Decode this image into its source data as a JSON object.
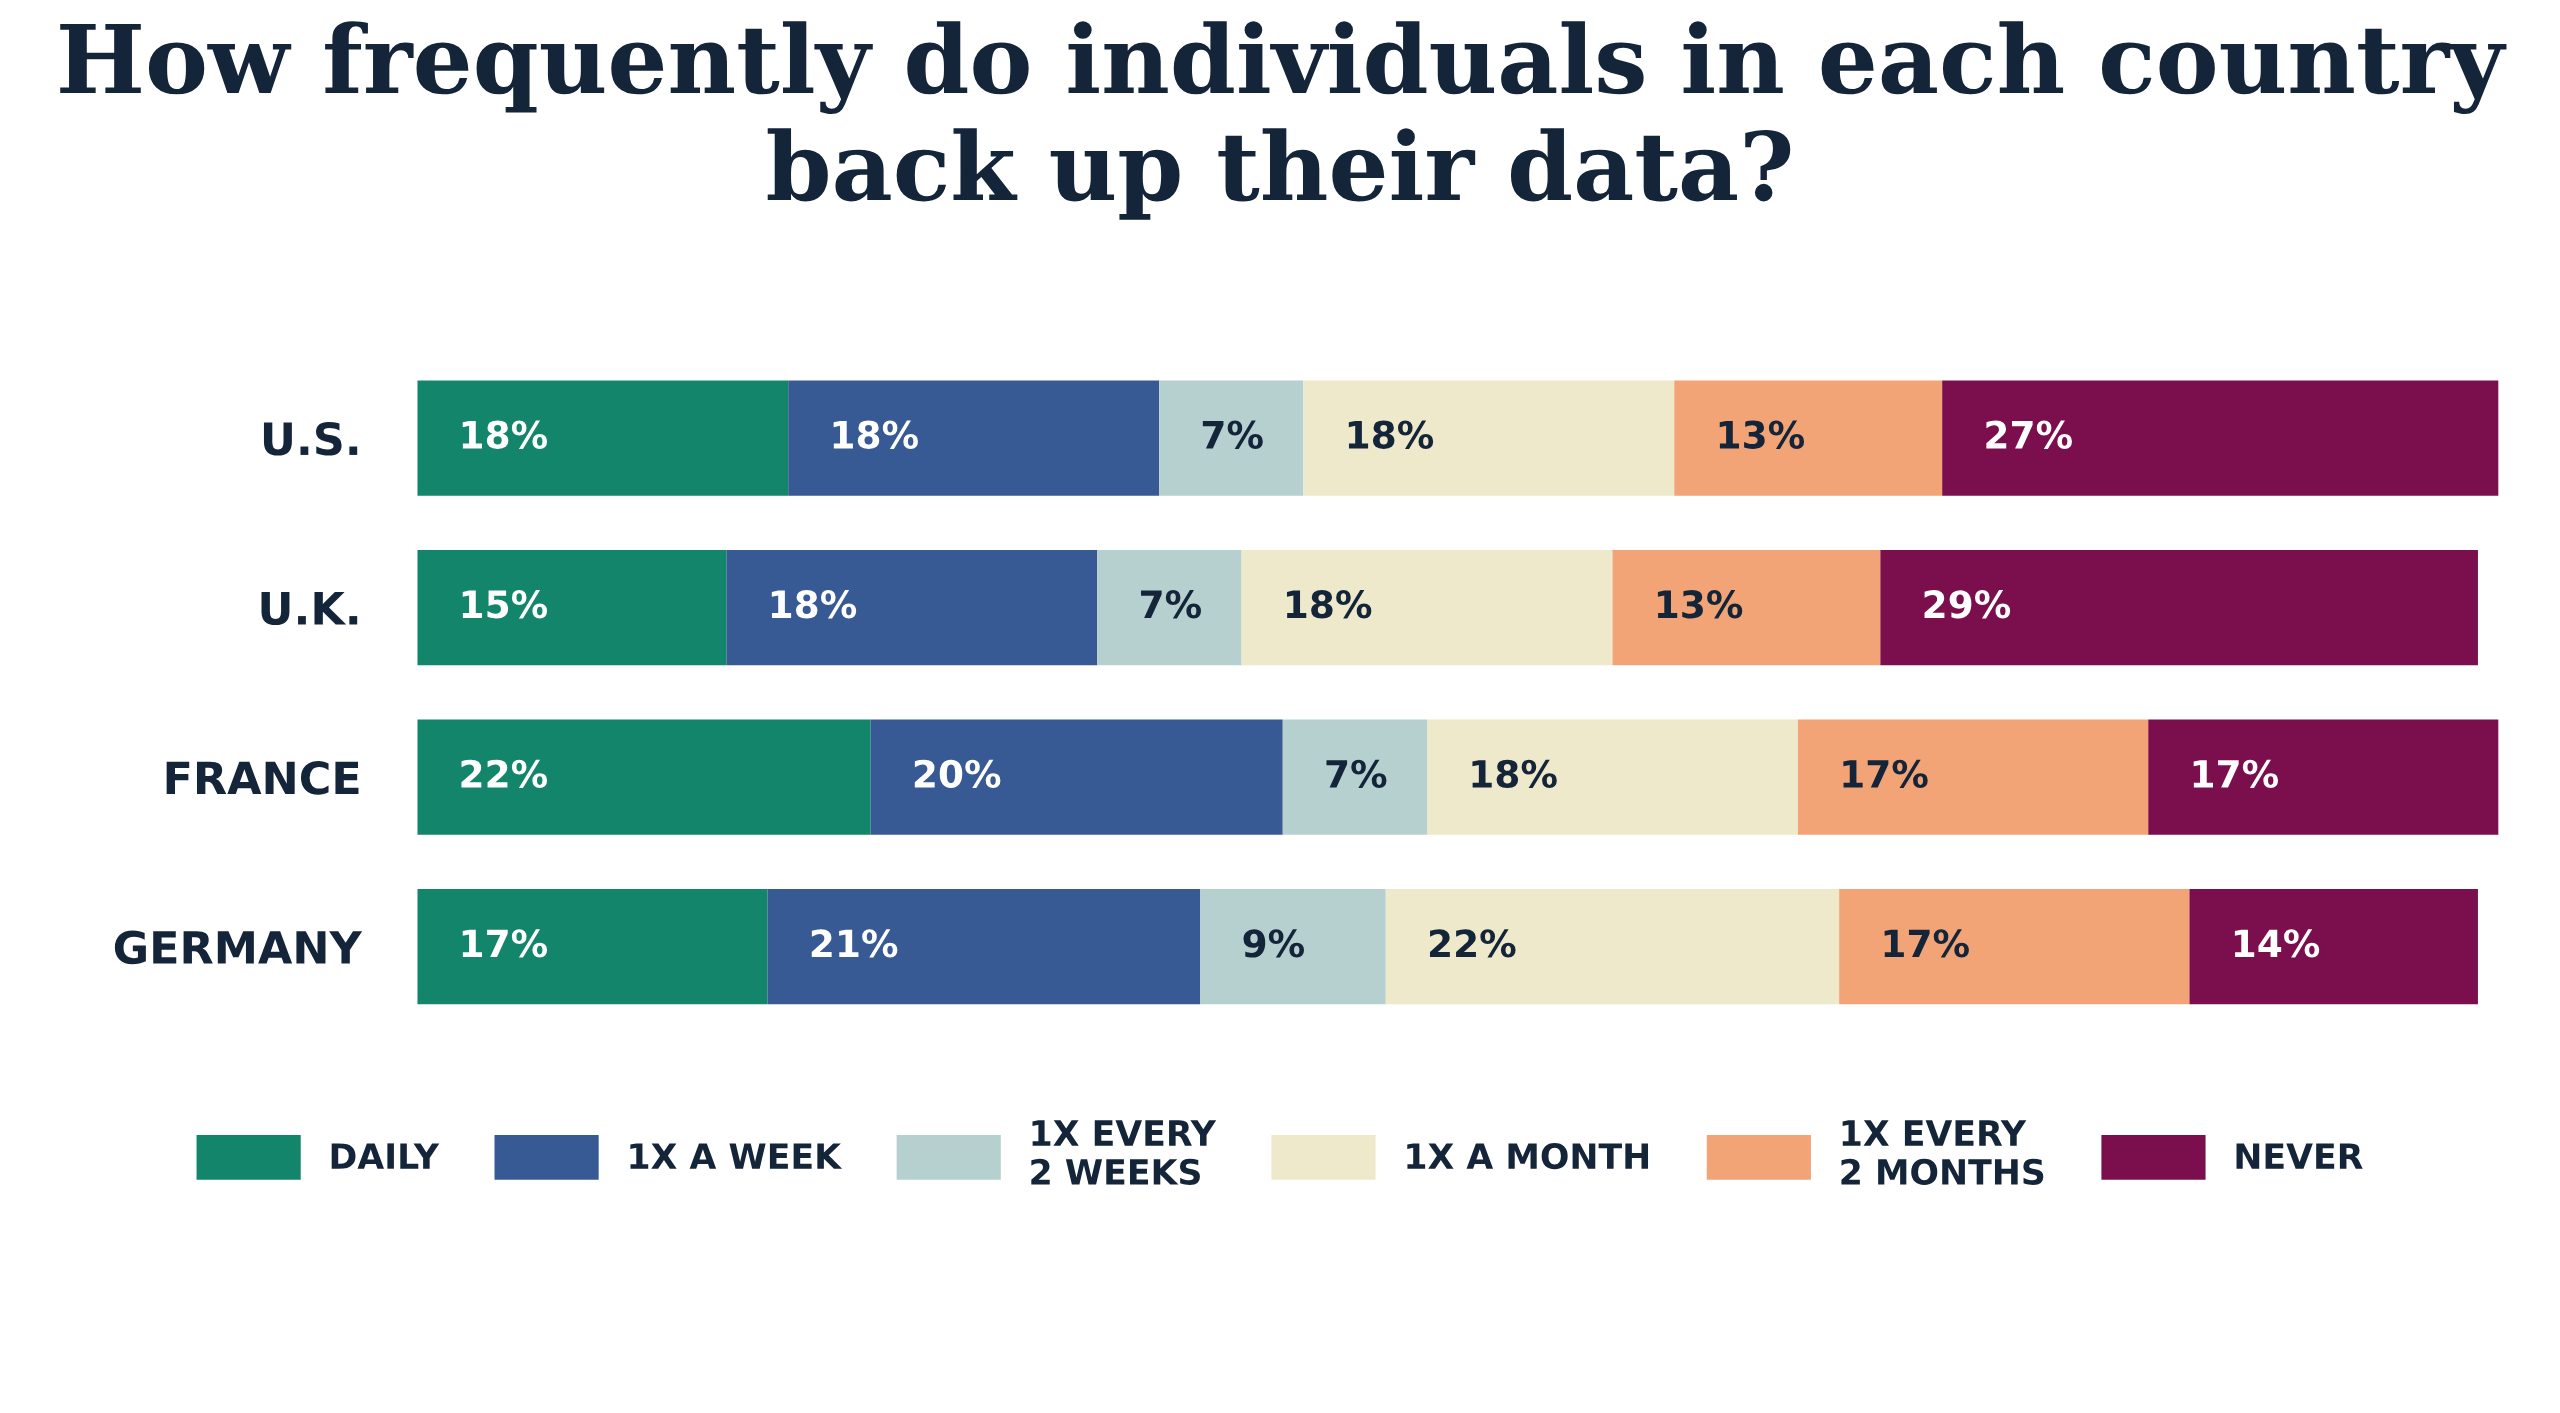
{
  "chart_data": {
    "type": "bar",
    "orientation": "horizontal",
    "stacked": true,
    "title": "How frequently do individuals in each country back up their data?",
    "categories": [
      "U.S.",
      "U.K.",
      "FRANCE",
      "GERMANY"
    ],
    "series": [
      {
        "name": "DAILY",
        "color": "#12856b",
        "values": [
          18,
          15,
          22,
          17
        ],
        "value_labels": [
          "18%",
          "15%",
          "22%",
          "17%"
        ]
      },
      {
        "name": "1X A WEEK",
        "color": "#385a94",
        "values": [
          18,
          18,
          20,
          21
        ],
        "value_labels": [
          "18%",
          "18%",
          "20%",
          "21%"
        ]
      },
      {
        "name": "1X EVERY\n2 WEEKS",
        "color": "#b5d0cf",
        "values": [
          7,
          7,
          7,
          9
        ],
        "value_labels": [
          "7%",
          "7%",
          "7%",
          "9%"
        ]
      },
      {
        "name": "1X A MONTH",
        "color": "#efe9cc",
        "values": [
          18,
          18,
          18,
          22
        ],
        "value_labels": [
          "18%",
          "18%",
          "18%",
          "22%"
        ]
      },
      {
        "name": "1X EVERY\n2 MONTHS",
        "color": "#f2a477",
        "values": [
          13,
          13,
          17,
          17
        ],
        "value_labels": [
          "13%",
          "13%",
          "17%",
          "17%"
        ]
      },
      {
        "name": "NEVER",
        "color": "#7b0f4d",
        "values": [
          27,
          29,
          17,
          14
        ],
        "value_labels": [
          "27%",
          "29%",
          "17%",
          "14%"
        ]
      }
    ],
    "tick_labels": "y",
    "grid": false,
    "legend": "bottom"
  }
}
